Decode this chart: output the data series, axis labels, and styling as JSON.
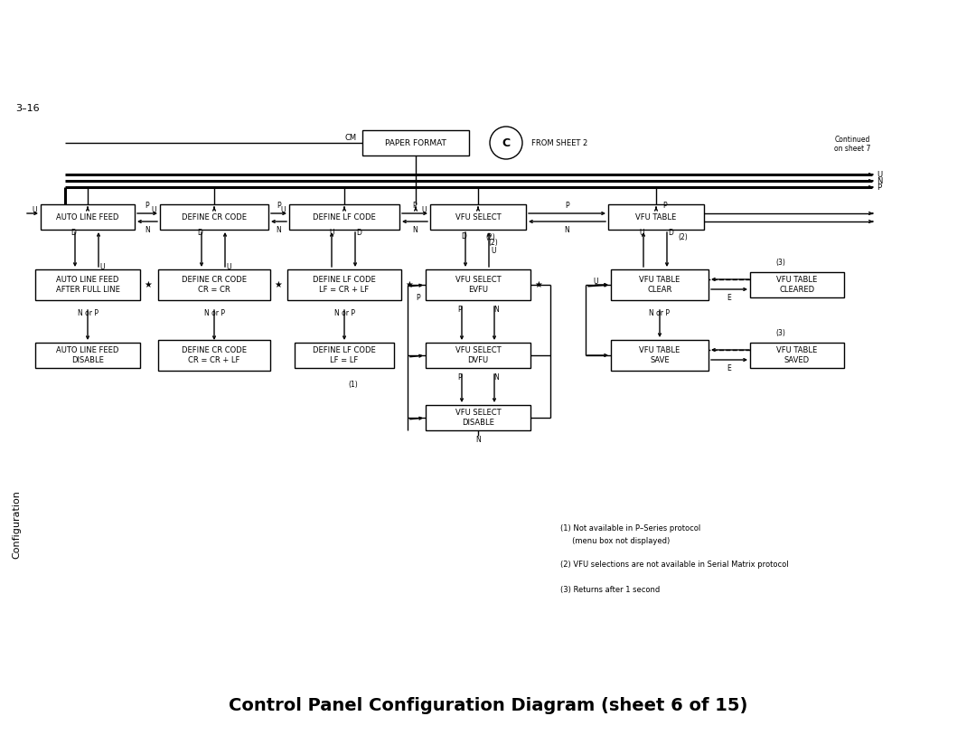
{
  "title": "Control Panel Configuration Diagram (sheet 6 of 15)",
  "page_num": "3–16",
  "side_label": "Configuration",
  "continued": "Continued\non sheet 7",
  "note1a": "(1) Not available in P–Series protocol",
  "note1b": "     (menu box not displayed)",
  "note2": "(2) VFU selections are not available in Serial Matrix protocol",
  "note3": "(3) Returns after 1 second",
  "cm_label": "CM",
  "from_sheet": "FROM SHEET 2",
  "circle_label": "C"
}
